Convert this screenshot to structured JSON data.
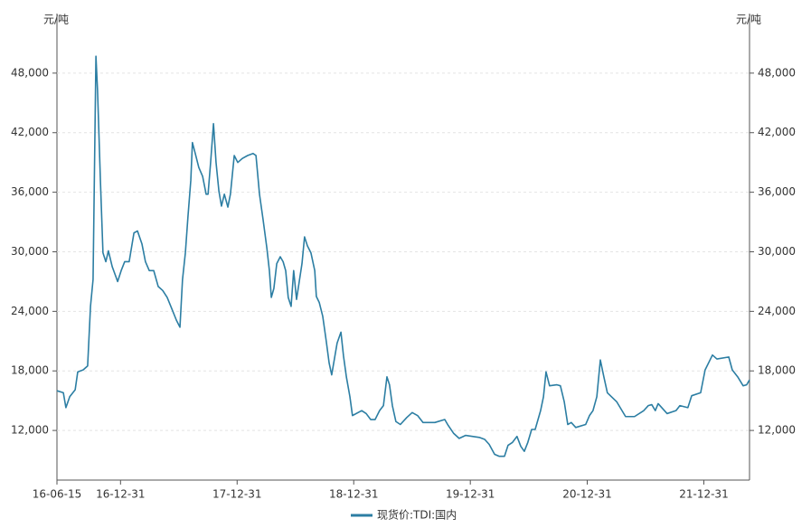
{
  "chart_data": {
    "type": "line",
    "y_label": "元/吨",
    "y2_label": "元/吨",
    "x": [
      "16-06-15",
      "16-07-05",
      "16-07-13",
      "16-07-25",
      "16-08-11",
      "16-08-19",
      "16-09-05",
      "16-09-19",
      "16-09-28",
      "16-10-06",
      "16-10-15",
      "16-10-20",
      "16-10-29",
      "16-11-06",
      "16-11-15",
      "16-11-23",
      "16-12-05",
      "16-12-22",
      "17-01-02",
      "17-01-13",
      "17-01-27",
      "17-02-11",
      "17-02-22",
      "17-03-08",
      "17-03-19",
      "17-03-31",
      "17-04-14",
      "17-04-28",
      "17-05-12",
      "17-05-26",
      "17-06-09",
      "17-06-24",
      "17-07-05",
      "17-07-13",
      "17-07-22",
      "17-07-30",
      "17-08-08",
      "17-08-13",
      "17-08-22",
      "17-09-02",
      "17-09-14",
      "17-09-25",
      "17-10-01",
      "17-10-09",
      "17-10-18",
      "17-10-26",
      "17-11-04",
      "17-11-12",
      "17-11-21",
      "17-12-02",
      "17-12-10",
      "17-12-22",
      "18-01-02",
      "18-01-16",
      "18-02-02",
      "18-02-19",
      "18-02-28",
      "18-03-11",
      "18-03-22",
      "18-04-03",
      "18-04-11",
      "18-04-17",
      "18-04-25",
      "18-05-04",
      "18-05-15",
      "18-05-24",
      "18-06-01",
      "18-06-09",
      "18-06-18",
      "18-06-26",
      "18-07-05",
      "18-07-13",
      "18-07-22",
      "18-07-30",
      "18-08-08",
      "18-08-19",
      "18-08-31",
      "18-09-05",
      "18-09-14",
      "18-09-25",
      "18-10-06",
      "18-10-15",
      "18-10-23",
      "18-11-01",
      "18-11-09",
      "18-11-21",
      "18-11-29",
      "18-12-08",
      "18-12-19",
      "18-12-27",
      "19-01-25",
      "19-02-08",
      "19-02-22",
      "19-03-08",
      "19-03-22",
      "19-04-03",
      "19-04-14",
      "19-04-22",
      "19-05-01",
      "19-05-12",
      "19-05-26",
      "19-06-15",
      "19-07-02",
      "19-07-19",
      "19-08-05",
      "19-09-11",
      "19-10-12",
      "19-10-21",
      "19-11-09",
      "19-11-26",
      "19-12-16",
      "20-01-28",
      "20-02-14",
      "20-02-28",
      "20-03-16",
      "20-03-30",
      "20-04-16",
      "20-04-27",
      "20-05-11",
      "20-05-25",
      "20-06-06",
      "20-06-17",
      "20-06-28",
      "20-07-10",
      "20-07-21",
      "20-08-07",
      "20-08-16",
      "20-08-24",
      "20-09-04",
      "20-09-27",
      "20-10-08",
      "20-10-20",
      "20-10-31",
      "20-11-11",
      "20-11-25",
      "20-12-26",
      "21-01-07",
      "21-01-18",
      "21-01-30",
      "21-02-10",
      "21-02-21",
      "21-03-04",
      "21-04-02",
      "21-04-30",
      "21-05-28",
      "21-06-26",
      "21-07-10",
      "21-07-21",
      "21-08-01",
      "21-08-10",
      "21-09-07",
      "21-10-05",
      "21-10-17",
      "21-11-11",
      "21-11-23",
      "21-12-21",
      "22-01-04",
      "22-01-27",
      "22-02-10",
      "22-03-19",
      "22-03-30",
      "22-04-16",
      "22-05-03",
      "22-05-14",
      "22-05-23"
    ],
    "series": [
      {
        "name": "现货价:TDI:国内",
        "color": "#2c7ea3",
        "values": [
          16000,
          15800,
          14300,
          15400,
          16100,
          17900,
          18100,
          18500,
          24500,
          27200,
          49700,
          46300,
          37200,
          29900,
          29000,
          30100,
          28500,
          27000,
          28100,
          29000,
          29000,
          31900,
          32100,
          30800,
          29000,
          28100,
          28100,
          26500,
          26100,
          25400,
          24300,
          23100,
          22400,
          27200,
          29900,
          33500,
          37200,
          41000,
          39900,
          38500,
          37600,
          35800,
          35800,
          39000,
          42900,
          39000,
          36100,
          34600,
          35800,
          34500,
          35800,
          39700,
          39000,
          39400,
          39700,
          39900,
          39700,
          35800,
          33300,
          30400,
          28100,
          25400,
          26300,
          28800,
          29500,
          29000,
          28100,
          25400,
          24500,
          28100,
          25200,
          26900,
          28800,
          31500,
          30600,
          29900,
          28100,
          25500,
          24900,
          23500,
          21000,
          18800,
          17600,
          19300,
          20800,
          21900,
          19500,
          17400,
          15400,
          13500,
          14000,
          13700,
          13100,
          13100,
          14000,
          14500,
          17400,
          16600,
          14500,
          12900,
          12600,
          13300,
          13800,
          13500,
          12800,
          12800,
          13100,
          12600,
          11700,
          11200,
          11500,
          11300,
          11100,
          10600,
          9600,
          9400,
          9400,
          10500,
          10800,
          11400,
          10400,
          9900,
          10800,
          12100,
          12100,
          14000,
          15400,
          17900,
          16500,
          16600,
          16500,
          14900,
          12600,
          12800,
          12300,
          12600,
          13500,
          14000,
          15400,
          19100,
          17400,
          15800,
          14900,
          13400,
          13400,
          14000,
          14500,
          14600,
          14000,
          14700,
          13700,
          14000,
          14500,
          14300,
          15500,
          15800,
          18100,
          19600,
          19200,
          19400,
          18100,
          17400,
          16500,
          16600,
          17100
        ]
      }
    ],
    "xlim": [
      "16-06-15",
      "22-05-23"
    ],
    "xticks": [
      "16-06-15",
      "16-12-31",
      "17-12-31",
      "18-12-31",
      "19-12-31",
      "20-12-31",
      "21-12-31"
    ],
    "ylim": [
      7000,
      54000
    ],
    "yticks": [
      {
        "value": 12000,
        "label": "12,000"
      },
      {
        "value": 18000,
        "label": "18,000"
      },
      {
        "value": 24000,
        "label": "24,000"
      },
      {
        "value": 30000,
        "label": "30,000"
      },
      {
        "value": 36000,
        "label": "36,000"
      },
      {
        "value": 42000,
        "label": "42,000"
      },
      {
        "value": 48000,
        "label": "48,000"
      }
    ],
    "y2lim": [
      7000,
      54000
    ],
    "y2ticks": [
      {
        "value": 12000,
        "label": "12,000"
      },
      {
        "value": 18000,
        "label": "18,000"
      },
      {
        "value": 24000,
        "label": "24,000"
      },
      {
        "value": 30000,
        "label": "30,000"
      },
      {
        "value": 36000,
        "label": "36,000"
      },
      {
        "value": 42000,
        "label": "42,000"
      },
      {
        "value": 48000,
        "label": "48,000"
      }
    ],
    "grid": true
  }
}
